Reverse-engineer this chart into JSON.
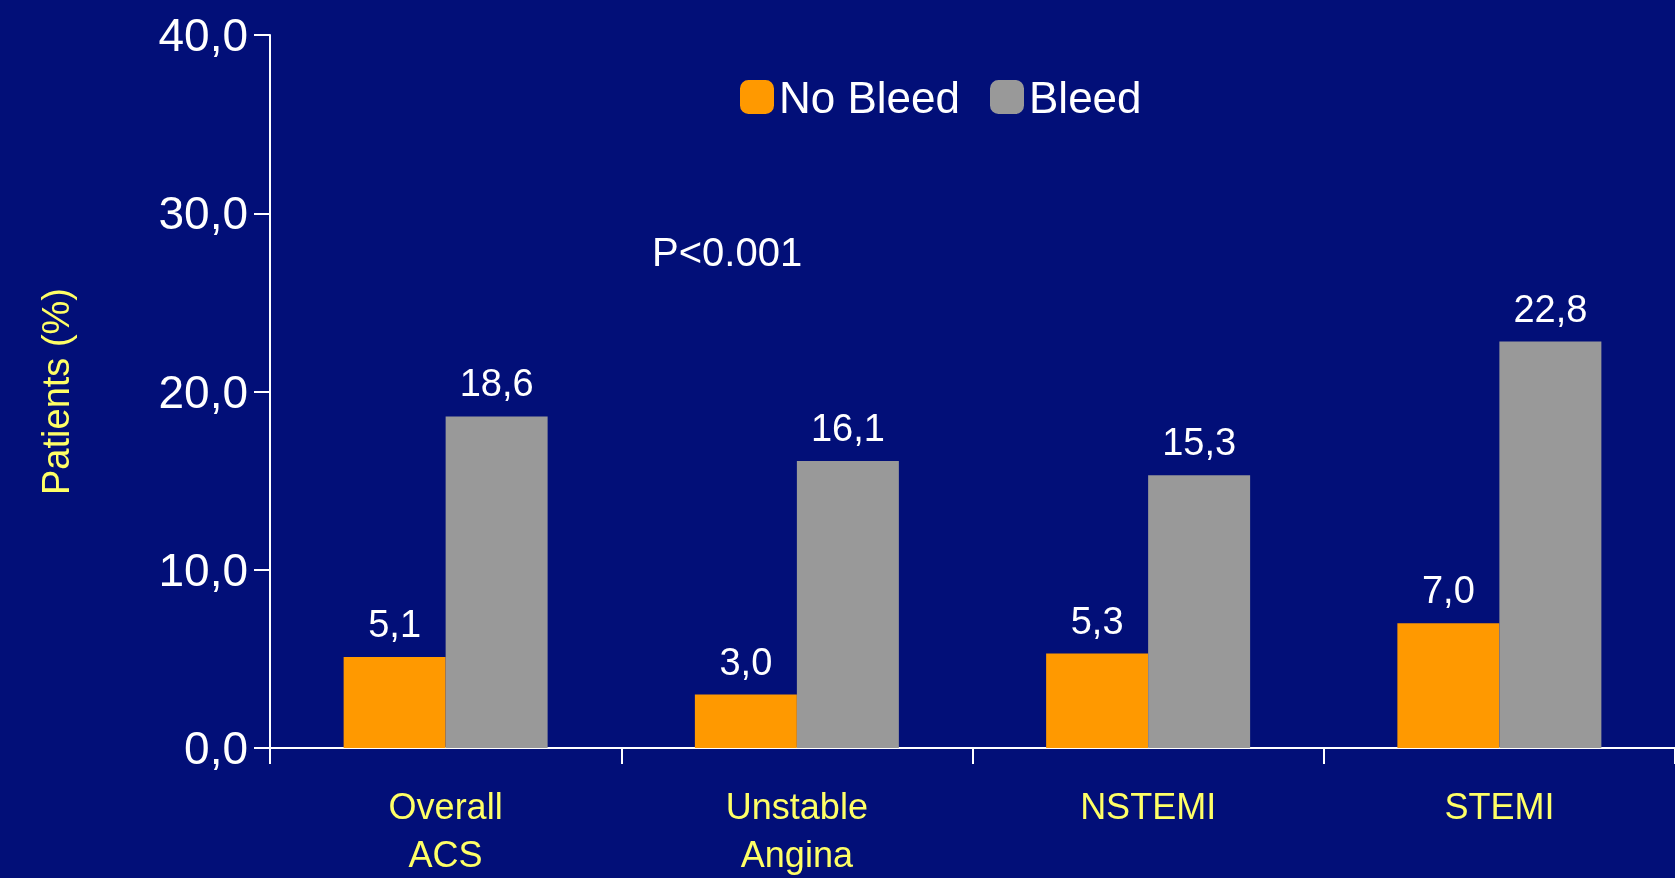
{
  "chart_data": {
    "type": "bar",
    "categories": [
      "Overall\nACS",
      "Unstable\nAngina",
      "NSTEMI",
      "STEMI"
    ],
    "series": [
      {
        "name": "No Bleed",
        "color": "#ff9900",
        "values": [
          5.1,
          3.0,
          5.3,
          7.0
        ],
        "value_labels": [
          "5,1",
          "3,0",
          "5,3",
          "7,0"
        ]
      },
      {
        "name": "Bleed",
        "color": "#999999",
        "values": [
          18.6,
          16.1,
          15.3,
          22.8
        ],
        "value_labels": [
          "18,6",
          "16,1",
          "15,3",
          "22,8"
        ]
      }
    ],
    "ylabel": "Patients (%)",
    "ylim": [
      0,
      40
    ],
    "yticks": [
      {
        "value": 0,
        "label": "0,0"
      },
      {
        "value": 10,
        "label": "10,0"
      },
      {
        "value": 20,
        "label": "20,0"
      },
      {
        "value": 30,
        "label": "30,0"
      },
      {
        "value": 40,
        "label": "40,0"
      }
    ],
    "annotations": [
      "P<0.001"
    ],
    "legend": "top",
    "grid": false
  }
}
